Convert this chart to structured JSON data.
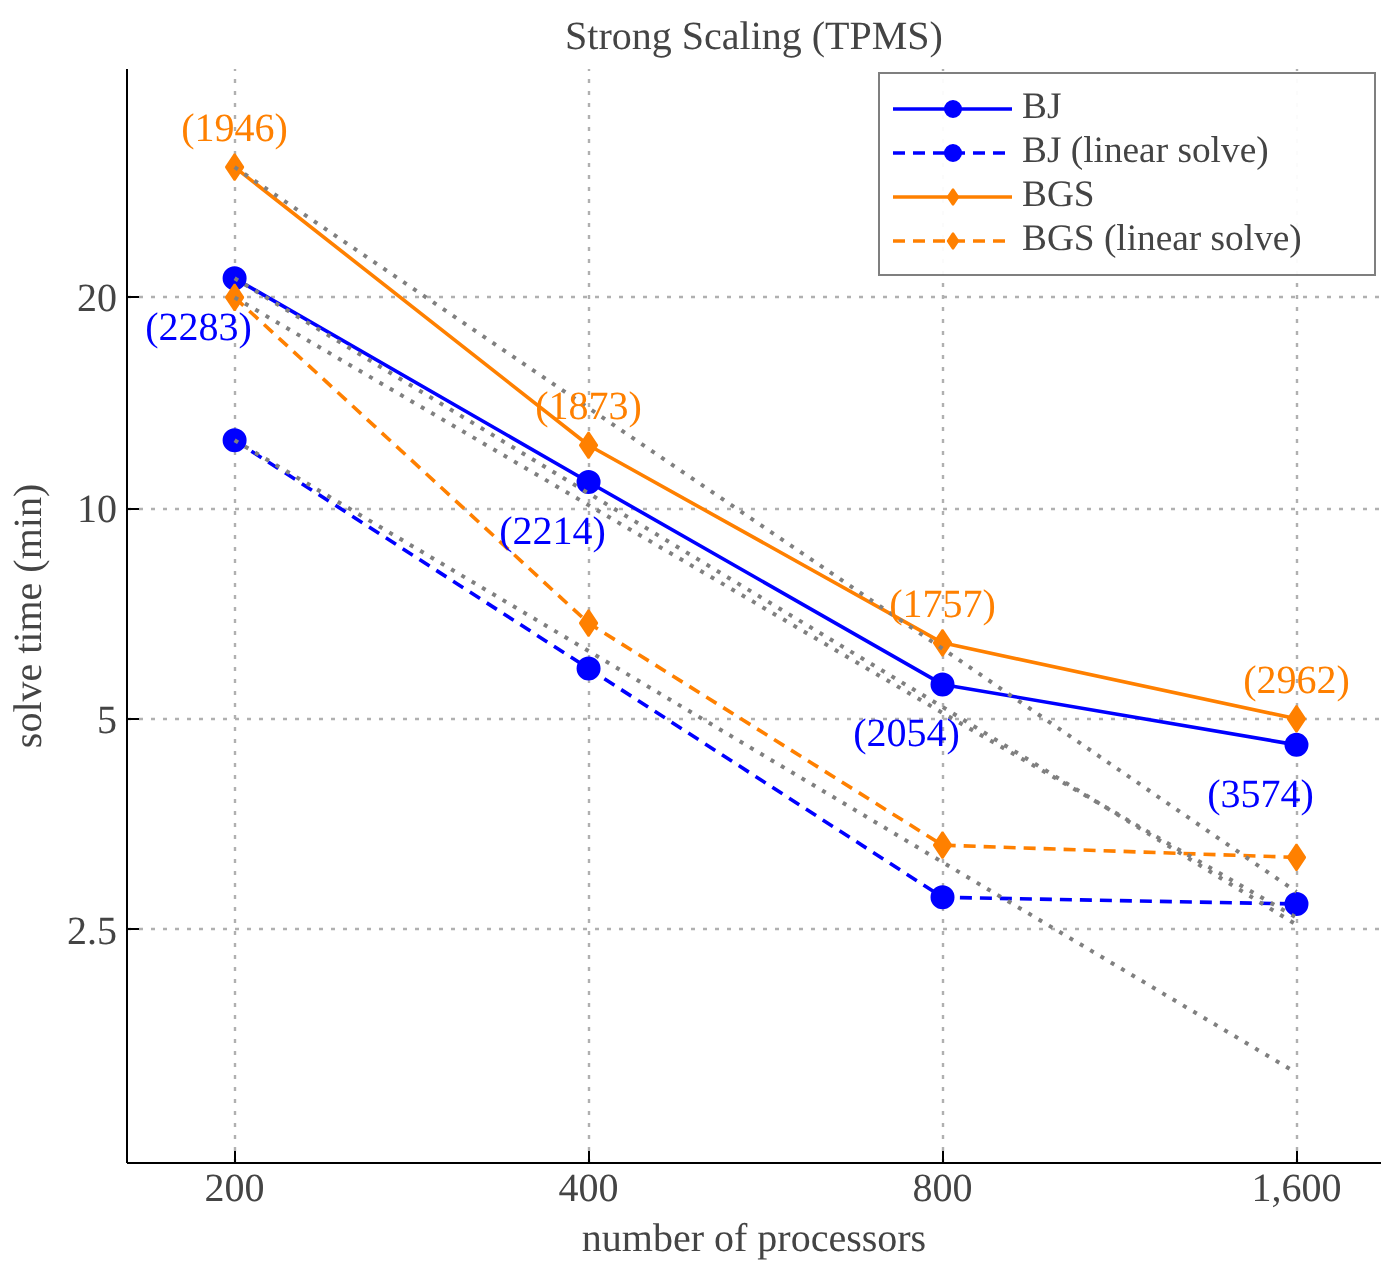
{
  "chart_data": {
    "type": "line",
    "title": "Strong Scaling (TPMS)",
    "xlabel": "number of processors",
    "ylabel": "solve time (min)",
    "x": [
      200,
      400,
      800,
      1600
    ],
    "series": [
      {
        "name": "BJ",
        "color": "#0000ff",
        "values": [
          21.3,
          10.9,
          5.6,
          4.59
        ],
        "marker": "circle",
        "line_style": "solid"
      },
      {
        "name": "BJ (linear solve)",
        "color": "#0000ff",
        "values": [
          12.5,
          5.9,
          2.78,
          2.72
        ],
        "marker": "circle",
        "line_style": "dashed"
      },
      {
        "name": "BGS",
        "color": "#ff8000",
        "values": [
          30.7,
          12.3,
          6.42,
          5.0
        ],
        "marker": "diamond",
        "line_style": "solid"
      },
      {
        "name": "BGS (linear solve)",
        "color": "#ff8000",
        "values": [
          20.0,
          6.85,
          3.3,
          3.17
        ],
        "marker": "diamond",
        "line_style": "dashed"
      },
      {
        "color": "#808080",
        "values": [
          30.7,
          13.9,
          6.3,
          2.83
        ],
        "marker": "none",
        "line_style": "dotted"
      },
      {
        "color": "#808080",
        "values": [
          21.3,
          10.5,
          5.2,
          2.54
        ],
        "marker": "none",
        "line_style": "dotted"
      },
      {
        "color": "#808080",
        "values": [
          20.0,
          10.1,
          5.1,
          2.6
        ],
        "marker": "none",
        "line_style": "dotted"
      },
      {
        "color": "#808080",
        "values": [
          12.5,
          6.25,
          3.12,
          1.56
        ],
        "marker": "none",
        "line_style": "dotted"
      }
    ],
    "annotations": [
      {
        "text": "(1946)",
        "x": 200,
        "y": 30.7
      },
      {
        "text": "(1873)",
        "x": 400,
        "y": 12.3
      },
      {
        "text": "(1757)",
        "x": 800,
        "y": 6.42
      },
      {
        "text": "(2962)",
        "x": 1600,
        "y": 5.0
      },
      {
        "text": "(2283)",
        "x": 200,
        "y": 21.3
      },
      {
        "text": "(2214)",
        "x": 400,
        "y": 10.9
      },
      {
        "text": "(2054)",
        "x": 800,
        "y": 5.6
      },
      {
        "text": "(3574)",
        "x": 1600,
        "y": 4.59
      }
    ],
    "log": "xy",
    "xlim": [
      162,
      1888
    ],
    "ylim": [
      1.16,
      42.4
    ],
    "xticks": [
      200,
      400,
      800,
      {
        "value": 1600,
        "label": "1,600"
      }
    ],
    "yticks": [
      2.5,
      5,
      10,
      20
    ],
    "grid": true,
    "legend": "top right"
  }
}
